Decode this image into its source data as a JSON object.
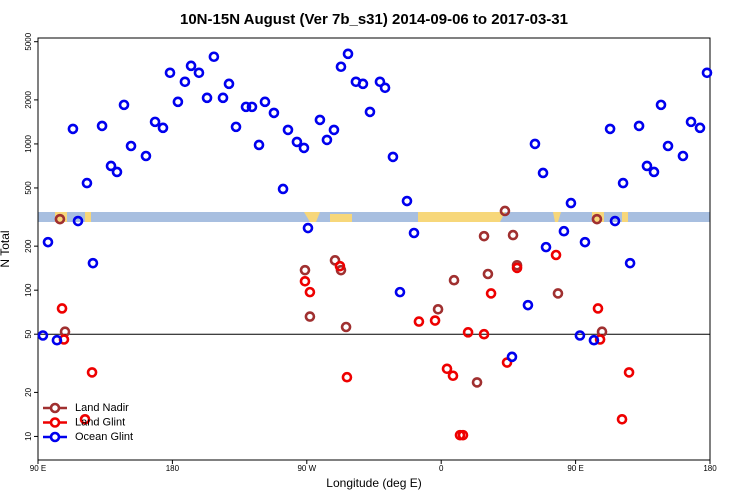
{
  "chart_data": {
    "type": "scatter",
    "title": "10N-15N August (Ver 7b_s31)   2014-09-06 to 2017-03-31",
    "x_label": "Longitude (deg E)",
    "y_label": "N Total",
    "xlim": [
      90,
      540
    ],
    "xticks": [
      {
        "value": 90,
        "label": "90 E"
      },
      180,
      {
        "value": 270,
        "label": "90 W"
      },
      {
        "value": 360,
        "label": "0"
      },
      {
        "value": 450,
        "label": "90 E"
      },
      {
        "value": 540,
        "label": "180"
      }
    ],
    "ylim": [
      6.9,
      5300
    ],
    "log_y": true,
    "yticks": [
      10,
      20,
      50,
      100,
      200,
      500,
      1000,
      2000,
      5000
    ],
    "hlines": [
      50
    ],
    "legend": "lower left",
    "series": [
      {
        "name": "Land Nadir",
        "color": "#a03030",
        "x": [
          104.7,
          108.1,
          268.8,
          272.1,
          288.9,
          292.9,
          296.3,
          357.9,
          368.6,
          384.0,
          388.7,
          391.3,
          402.7,
          408.1,
          410.8,
          438.2,
          464.3,
          467.7
        ],
        "values": [
          306,
          52,
          137,
          66,
          160,
          137,
          56,
          74,
          117,
          23.4,
          234,
          129,
          348,
          238,
          148,
          95,
          306,
          52
        ]
      },
      {
        "name": "Land Glint",
        "color": "#ee0000",
        "x": [
          106.1,
          107.4,
          126.2,
          121.5,
          268.8,
          272.1,
          292.2,
          296.9,
          345.1,
          355.9,
          363.9,
          367.9,
          372.6,
          374.6,
          378.0,
          388.7,
          393.4,
          404.1,
          410.8,
          436.9,
          465.0,
          466.4,
          485.8,
          481.1
        ],
        "values": [
          75,
          46,
          27.4,
          13.1,
          115,
          97,
          146,
          25.4,
          61,
          62,
          29,
          26,
          10.2,
          10.2,
          51.5,
          50,
          95,
          32,
          142,
          174,
          75,
          46,
          27.4,
          13.1
        ]
      },
      {
        "name": "Ocean Glint",
        "color": "#0000ee",
        "x": [
          93.3,
          96.7,
          102.7,
          113.4,
          116.8,
          122.8,
          126.8,
          132.9,
          138.9,
          142.9,
          147.6,
          152.3,
          162.3,
          168.4,
          173.7,
          178.4,
          183.7,
          188.4,
          192.5,
          197.8,
          203.2,
          207.8,
          213.9,
          217.9,
          222.6,
          229.3,
          233.3,
          238.0,
          242.0,
          248.0,
          254.1,
          257.4,
          263.4,
          268.1,
          270.8,
          278.8,
          283.5,
          288.2,
          292.9,
          297.6,
          302.9,
          307.6,
          312.3,
          319.0,
          322.4,
          327.7,
          332.4,
          337.1,
          341.8,
          407.4,
          418.1,
          422.8,
          428.2,
          430.2,
          442.2,
          446.9,
          452.9,
          456.3,
          462.3,
          473.1,
          476.4,
          481.8,
          486.5,
          492.5,
          497.8,
          502.5,
          507.2,
          511.9,
          521.9,
          527.3,
          533.3,
          538.0
        ],
        "values": [
          49,
          213,
          45.5,
          1267,
          297,
          540,
          153,
          1328,
          707,
          643,
          1849,
          968,
          827,
          1415,
          1288,
          3064,
          1940,
          2660,
          3420,
          3064,
          2066,
          3945,
          2066,
          2575,
          1308,
          1792,
          1792,
          984,
          1940,
          1630,
          492,
          1247,
          1032,
          939,
          266,
          1460,
          1065,
          1247,
          3370,
          4130,
          2660,
          2575,
          1656,
          2660,
          2420,
          815,
          97,
          407,
          246,
          35,
          79,
          1000,
          633,
          197,
          253,
          394,
          49,
          213,
          45.5,
          1267,
          297,
          540,
          153,
          1328,
          707,
          643,
          1849,
          968,
          827,
          1415,
          1288,
          3064
        ]
      }
    ]
  }
}
